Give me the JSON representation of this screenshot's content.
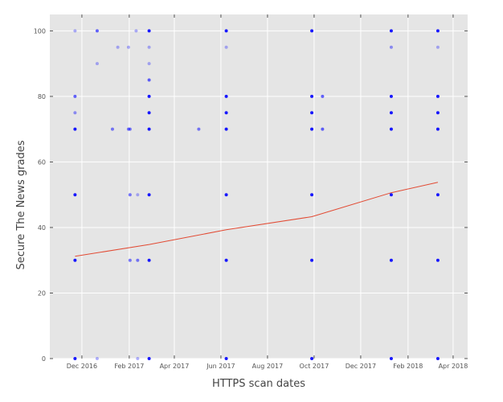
{
  "chart_data": {
    "type": "scatter",
    "title": "",
    "xlabel": "HTTPS scan dates",
    "ylabel": "Secure The News grades",
    "grid": true,
    "legend": "none",
    "xlim": [
      "2016-10-20",
      "2018-04-20"
    ],
    "ylim": [
      0,
      105
    ],
    "x_ticks": [
      {
        "date": "2016-12-01",
        "label": "Dec 2016"
      },
      {
        "date": "2017-02-01",
        "label": "Feb 2017"
      },
      {
        "date": "2017-04-01",
        "label": "Apr 2017"
      },
      {
        "date": "2017-06-01",
        "label": "Jun 2017"
      },
      {
        "date": "2017-08-01",
        "label": "Aug 2017"
      },
      {
        "date": "2017-10-01",
        "label": "Oct 2017"
      },
      {
        "date": "2017-12-01",
        "label": "Dec 2017"
      },
      {
        "date": "2018-02-01",
        "label": "Feb 2018"
      },
      {
        "date": "2018-04-01",
        "label": "Apr 2018"
      }
    ],
    "y_ticks": [
      0,
      20,
      40,
      60,
      80,
      100
    ],
    "colors": {
      "plot_bg": "#e5e5e5",
      "grid": "#ffffff",
      "points": "#0000ff",
      "trend": "#e24a33"
    },
    "series": [
      {
        "kind": "scatter",
        "points": [
          {
            "x": "2016-11-22",
            "y": 100,
            "a": 0.3
          },
          {
            "x": "2016-11-22",
            "y": 80,
            "a": 0.6
          },
          {
            "x": "2016-11-22",
            "y": 75,
            "a": 0.4
          },
          {
            "x": "2016-11-22",
            "y": 70,
            "a": 0.9
          },
          {
            "x": "2016-11-22",
            "y": 50,
            "a": 0.9
          },
          {
            "x": "2016-11-22",
            "y": 30,
            "a": 0.9
          },
          {
            "x": "2016-11-22",
            "y": 0,
            "a": 0.9
          },
          {
            "x": "2016-12-21",
            "y": 100,
            "a": 0.6
          },
          {
            "x": "2016-12-21",
            "y": 90,
            "a": 0.3
          },
          {
            "x": "2016-12-21",
            "y": 0,
            "a": 0.3
          },
          {
            "x": "2017-01-10",
            "y": 70,
            "a": 0.5
          },
          {
            "x": "2017-01-17",
            "y": 95,
            "a": 0.3
          },
          {
            "x": "2017-01-31",
            "y": 95,
            "a": 0.3
          },
          {
            "x": "2017-01-31",
            "y": 70,
            "a": 0.5
          },
          {
            "x": "2017-02-02",
            "y": 70,
            "a": 0.5
          },
          {
            "x": "2017-02-02",
            "y": 50,
            "a": 0.5
          },
          {
            "x": "2017-02-02",
            "y": 30,
            "a": 0.5
          },
          {
            "x": "2017-02-10",
            "y": 100,
            "a": 0.3
          },
          {
            "x": "2017-02-12",
            "y": 50,
            "a": 0.3
          },
          {
            "x": "2017-02-12",
            "y": 30,
            "a": 0.5
          },
          {
            "x": "2017-02-12",
            "y": 0,
            "a": 0.3
          },
          {
            "x": "2017-02-27",
            "y": 100,
            "a": 0.9
          },
          {
            "x": "2017-02-27",
            "y": 95,
            "a": 0.3
          },
          {
            "x": "2017-02-27",
            "y": 90,
            "a": 0.3
          },
          {
            "x": "2017-02-27",
            "y": 85,
            "a": 0.6
          },
          {
            "x": "2017-02-27",
            "y": 80,
            "a": 0.9
          },
          {
            "x": "2017-02-27",
            "y": 75,
            "a": 0.9
          },
          {
            "x": "2017-02-27",
            "y": 70,
            "a": 0.9
          },
          {
            "x": "2017-02-27",
            "y": 50,
            "a": 0.9
          },
          {
            "x": "2017-02-27",
            "y": 30,
            "a": 0.9
          },
          {
            "x": "2017-02-27",
            "y": 0,
            "a": 0.9
          },
          {
            "x": "2017-05-03",
            "y": 70,
            "a": 0.5
          },
          {
            "x": "2017-06-08",
            "y": 100,
            "a": 0.9
          },
          {
            "x": "2017-06-08",
            "y": 95,
            "a": 0.3
          },
          {
            "x": "2017-06-08",
            "y": 80,
            "a": 0.9
          },
          {
            "x": "2017-06-08",
            "y": 75,
            "a": 0.9
          },
          {
            "x": "2017-06-08",
            "y": 70,
            "a": 0.9
          },
          {
            "x": "2017-06-08",
            "y": 50,
            "a": 0.9
          },
          {
            "x": "2017-06-08",
            "y": 30,
            "a": 0.9
          },
          {
            "x": "2017-06-08",
            "y": 0,
            "a": 0.9
          },
          {
            "x": "2017-09-28",
            "y": 100,
            "a": 0.9
          },
          {
            "x": "2017-09-28",
            "y": 80,
            "a": 0.9
          },
          {
            "x": "2017-09-28",
            "y": 75,
            "a": 0.9
          },
          {
            "x": "2017-09-28",
            "y": 70,
            "a": 0.9
          },
          {
            "x": "2017-09-28",
            "y": 50,
            "a": 0.9
          },
          {
            "x": "2017-09-28",
            "y": 30,
            "a": 0.9
          },
          {
            "x": "2017-09-28",
            "y": 0,
            "a": 0.9
          },
          {
            "x": "2017-10-12",
            "y": 80,
            "a": 0.6
          },
          {
            "x": "2017-10-12",
            "y": 70,
            "a": 0.6
          },
          {
            "x": "2018-01-10",
            "y": 100,
            "a": 0.9
          },
          {
            "x": "2018-01-10",
            "y": 95,
            "a": 0.4
          },
          {
            "x": "2018-01-10",
            "y": 80,
            "a": 0.9
          },
          {
            "x": "2018-01-10",
            "y": 75,
            "a": 0.9
          },
          {
            "x": "2018-01-10",
            "y": 70,
            "a": 0.9
          },
          {
            "x": "2018-01-10",
            "y": 50,
            "a": 0.9
          },
          {
            "x": "2018-01-10",
            "y": 30,
            "a": 0.9
          },
          {
            "x": "2018-01-10",
            "y": 0,
            "a": 0.9
          },
          {
            "x": "2018-03-12",
            "y": 100,
            "a": 0.9
          },
          {
            "x": "2018-03-12",
            "y": 95,
            "a": 0.3
          },
          {
            "x": "2018-03-12",
            "y": 80,
            "a": 0.9
          },
          {
            "x": "2018-03-12",
            "y": 75,
            "a": 0.9
          },
          {
            "x": "2018-03-12",
            "y": 70,
            "a": 0.9
          },
          {
            "x": "2018-03-12",
            "y": 50,
            "a": 0.9
          },
          {
            "x": "2018-03-12",
            "y": 30,
            "a": 0.9
          },
          {
            "x": "2018-03-12",
            "y": 0,
            "a": 0.9
          }
        ]
      },
      {
        "kind": "line",
        "points": [
          {
            "x": "2016-11-22",
            "y": 31.2
          },
          {
            "x": "2017-02-27",
            "y": 34.8
          },
          {
            "x": "2017-06-08",
            "y": 39.3
          },
          {
            "x": "2017-09-28",
            "y": 43.3
          },
          {
            "x": "2018-01-10",
            "y": 50.6
          },
          {
            "x": "2018-03-12",
            "y": 53.8
          }
        ]
      }
    ]
  }
}
